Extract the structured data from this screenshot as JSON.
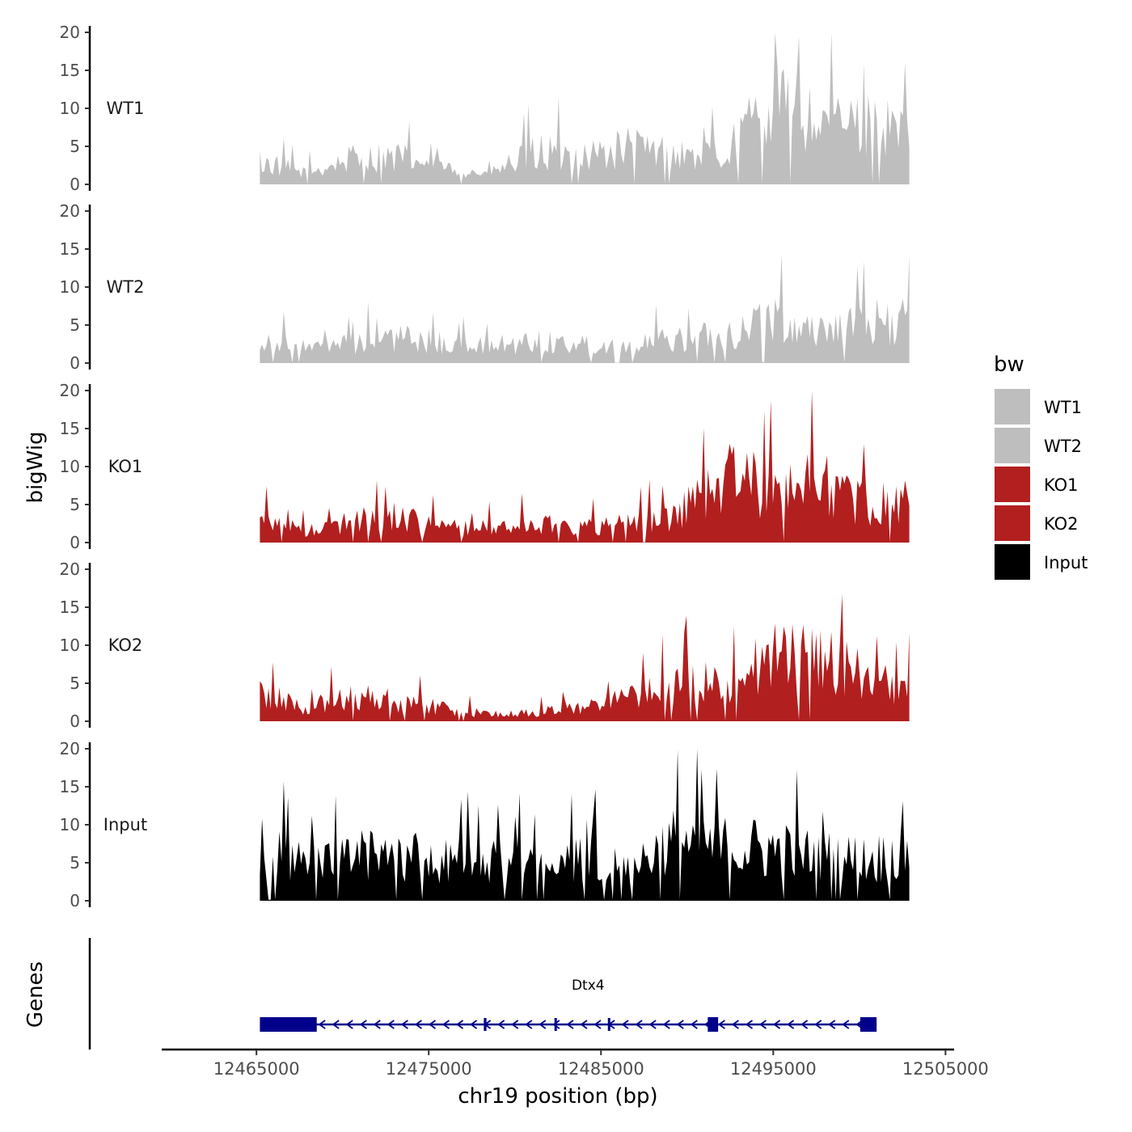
{
  "chart_data": {
    "type": "area",
    "title": "",
    "ylabel": "bigWig",
    "genes_label": "Genes",
    "xlabel": "chr19 position (bp)",
    "xlim": [
      12459500,
      12505500
    ],
    "ylim": [
      0,
      20
    ],
    "y_ticks": [
      0,
      5,
      10,
      15,
      20
    ],
    "x_ticks": [
      12465000,
      12475000,
      12485000,
      12495000,
      12505000
    ],
    "x_tick_labels": [
      "12465000",
      "12475000",
      "12485000",
      "12495000",
      "12505000"
    ],
    "legend": {
      "title": "bw",
      "position": "right",
      "entries": [
        {
          "name": "WT1",
          "color": "#BEBEBE"
        },
        {
          "name": "WT2",
          "color": "#BEBEBE"
        },
        {
          "name": "KO1",
          "color": "#B21F1F"
        },
        {
          "name": "KO2",
          "color": "#B21F1F"
        },
        {
          "name": "Input",
          "color": "#000000"
        }
      ]
    },
    "series": [
      {
        "name": "WT1",
        "color": "#BEBEBE",
        "x": [
          12465200,
          12467900,
          12470600,
          12473300,
          12476000,
          12478600,
          12481300,
          12484000,
          12486700,
          12489400,
          12492100,
          12494800,
          12497500,
          12500200,
          12502900,
          12502900
        ],
        "values": [
          3.0,
          1.5,
          3.4,
          3.5,
          2.0,
          1.4,
          4.3,
          3.7,
          4.8,
          3.8,
          3.8,
          10.6,
          8.2,
          7.9,
          6.6,
          2.0
        ]
      },
      {
        "name": "WT2",
        "color": "#BEBEBE",
        "x": [
          12465200,
          12467900,
          12470600,
          12473300,
          12476000,
          12478600,
          12481300,
          12484000,
          12486700,
          12489400,
          12492100,
          12494800,
          12497500,
          12500200,
          12502900,
          12502900
        ],
        "values": [
          3.1,
          1.9,
          2.5,
          3.4,
          2.6,
          2.2,
          2.9,
          2.4,
          2.1,
          3.4,
          3.5,
          6.0,
          4.5,
          5.3,
          5.7,
          6.1
        ]
      },
      {
        "name": "KO1",
        "color": "#B21F1F",
        "x": [
          12465200,
          12467900,
          12470600,
          12473300,
          12476000,
          12478600,
          12481300,
          12484000,
          12486700,
          12489400,
          12492100,
          12494800,
          12497500,
          12500200,
          12502900,
          12502900
        ],
        "values": [
          3.4,
          1.4,
          2.9,
          3.6,
          2.0,
          1.9,
          2.5,
          2.1,
          2.6,
          3.6,
          9.1,
          7.0,
          8.9,
          5.1,
          5.3,
          5.4
        ]
      },
      {
        "name": "KO2",
        "color": "#B21F1F",
        "x": [
          12465200,
          12467900,
          12470600,
          12473300,
          12476000,
          12478600,
          12481300,
          12484000,
          12486700,
          12489400,
          12492100,
          12494800,
          12497500,
          12500200,
          12502900,
          12502900
        ],
        "values": [
          3.8,
          1.8,
          3.4,
          2.6,
          1.7,
          0.9,
          1.1,
          2.2,
          3.0,
          4.8,
          5.3,
          8.2,
          8.5,
          5.8,
          4.9,
          3.4
        ]
      },
      {
        "name": "Input",
        "color": "#000000",
        "x": [
          12465200,
          12467900,
          12470600,
          12473300,
          12476000,
          12478600,
          12481300,
          12484000,
          12486700,
          12489400,
          12492100,
          12494800,
          12497500,
          12500200,
          12502900,
          12502900
        ],
        "values": [
          7.0,
          4.6,
          5.9,
          6.1,
          5.3,
          5.6,
          4.7,
          5.3,
          4.5,
          8.0,
          7.0,
          6.8,
          5.8,
          5.4,
          6.1,
          3.6
        ]
      }
    ],
    "gene": {
      "name": "Dtx4",
      "strand": "-",
      "start": 12465200,
      "end": 12501000,
      "color": "#00008B",
      "exons": [
        [
          12465200,
          12468500
        ],
        [
          12478200,
          12478350
        ],
        [
          12482300,
          12482400
        ],
        [
          12485400,
          12485500
        ],
        [
          12491200,
          12491800
        ],
        [
          12500050,
          12501000
        ]
      ]
    }
  }
}
